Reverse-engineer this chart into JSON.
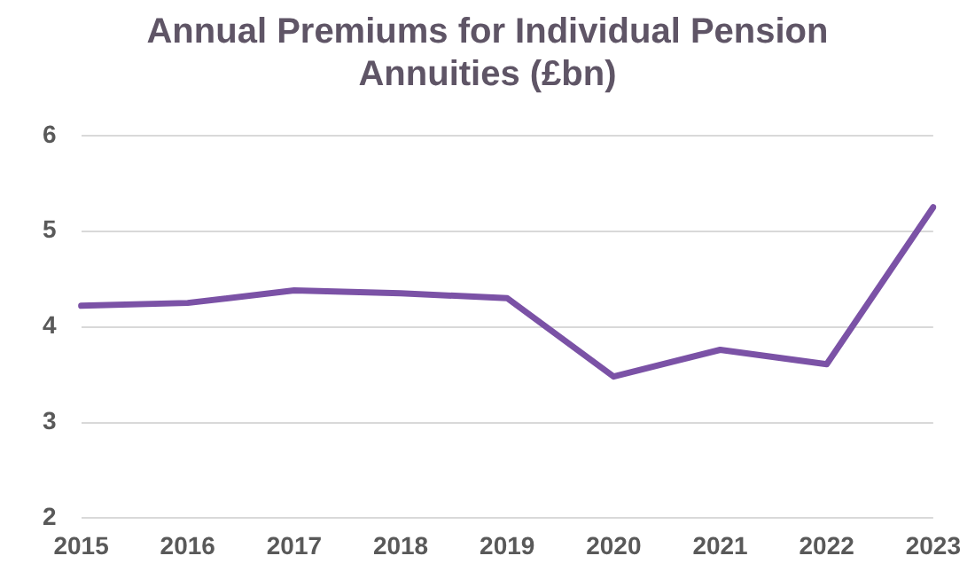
{
  "chart_data": {
    "type": "line",
    "title": "Annual Premiums for Individual Pension Annuities (£bn)",
    "categories": [
      "2015",
      "2016",
      "2017",
      "2018",
      "2019",
      "2020",
      "2021",
      "2022",
      "2023"
    ],
    "series": [
      {
        "color": "#7b52a6",
        "values": [
          4.22,
          4.25,
          4.38,
          4.35,
          4.3,
          3.48,
          3.76,
          3.61,
          5.25
        ]
      }
    ],
    "ylim": [
      2,
      6
    ],
    "yticks": [
      2,
      3,
      4,
      5,
      6
    ],
    "grid": "y",
    "marker": "none",
    "line_style": "solid"
  }
}
